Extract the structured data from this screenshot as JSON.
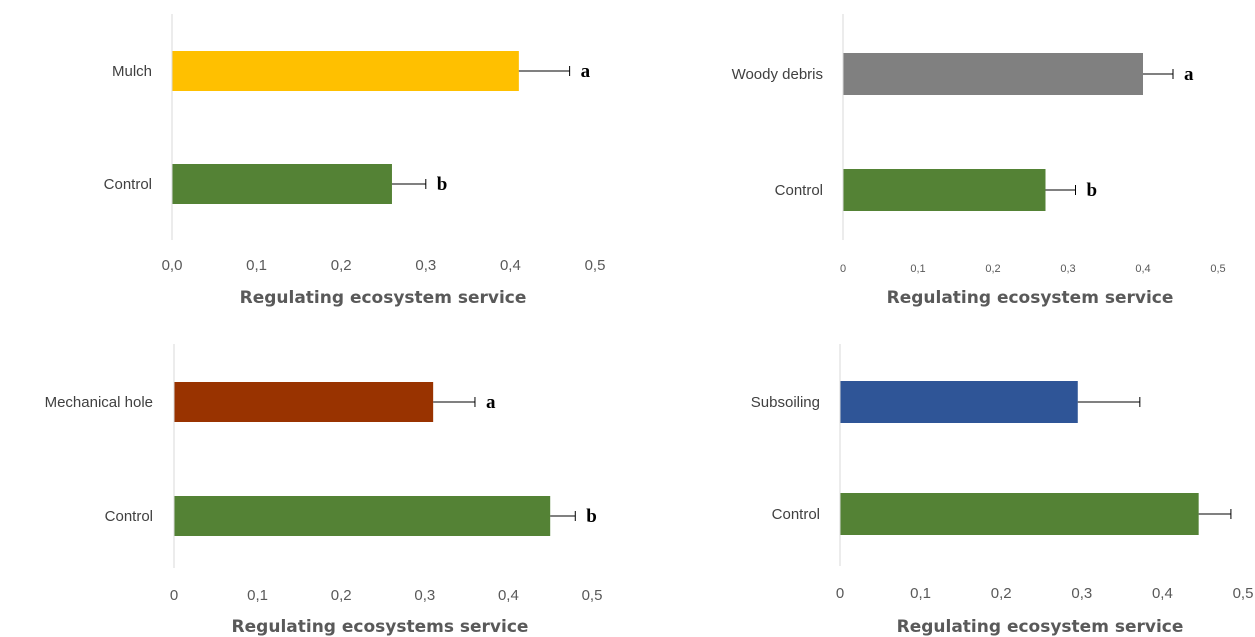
{
  "chart_data": [
    {
      "type": "bar",
      "orientation": "horizontal",
      "categories": [
        "Mulch",
        "Control"
      ],
      "values": [
        0.41,
        0.26
      ],
      "errors": [
        0.06,
        0.04
      ],
      "significance": [
        "a",
        "b"
      ],
      "colors": [
        "#ffc000",
        "#548235"
      ],
      "xlim": [
        0,
        0.5
      ],
      "ticks": [
        "0,0",
        "0,1",
        "0,2",
        "0,3",
        "0,4",
        "0,5"
      ],
      "xlabel": "Regulating ecosystem service",
      "grid": false
    },
    {
      "type": "bar",
      "orientation": "horizontal",
      "categories": [
        "Woody debris",
        "Control"
      ],
      "values": [
        0.4,
        0.27
      ],
      "errors": [
        0.04,
        0.04
      ],
      "significance": [
        "a",
        "b"
      ],
      "colors": [
        "#808080",
        "#548235"
      ],
      "xlim": [
        0,
        0.5
      ],
      "ticks": [
        "0",
        "0,1",
        "0,2",
        "0,3",
        "0,4",
        "0,5"
      ],
      "xlabel": "Regulating ecosystem service",
      "grid": false
    },
    {
      "type": "bar",
      "orientation": "horizontal",
      "categories": [
        "Mechanical hole",
        "Control"
      ],
      "values": [
        0.31,
        0.45
      ],
      "errors": [
        0.05,
        0.03
      ],
      "significance": [
        "a",
        "b"
      ],
      "colors": [
        "#993300",
        "#548235"
      ],
      "xlim": [
        0,
        0.5
      ],
      "ticks": [
        "0",
        "0,1",
        "0,2",
        "0,3",
        "0,4",
        "0,5"
      ],
      "xlabel": "Regulating ecosystems service",
      "grid": false
    },
    {
      "type": "bar",
      "orientation": "horizontal",
      "categories": [
        "Subsoiling",
        "Control"
      ],
      "values": [
        0.295,
        0.445
      ],
      "errors": [
        0.077,
        0.04
      ],
      "significance": [
        "",
        ""
      ],
      "colors": [
        "#2f5597",
        "#548235"
      ],
      "xlim": [
        0,
        0.5
      ],
      "ticks": [
        "0",
        "0,1",
        "0,2",
        "0,3",
        "0,4",
        "0,5"
      ],
      "xlabel": "Regulating ecosystem service",
      "grid": false
    }
  ]
}
